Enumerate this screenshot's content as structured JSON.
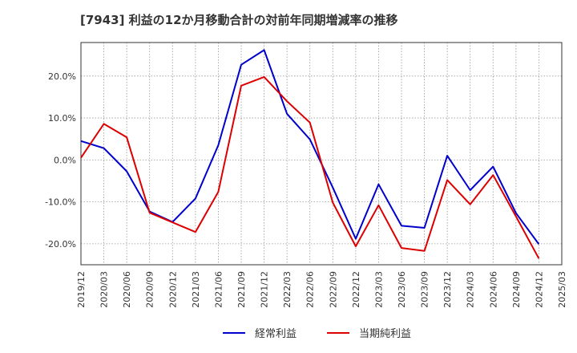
{
  "chart_data": {
    "type": "line",
    "title": "[7943]  利益の12か月移動合計の対前年同期増減率の推移",
    "xlabel": "",
    "ylabel": "",
    "ylim": [
      -25,
      28
    ],
    "yticks": [
      20,
      10,
      0,
      -10,
      -20
    ],
    "ytick_labels": [
      "20.0%",
      "10.0%",
      "0.0%",
      "-10.0%",
      "-20.0%"
    ],
    "categories": [
      "2019/12",
      "2020/03",
      "2020/06",
      "2020/09",
      "2020/12",
      "2021/03",
      "2021/06",
      "2021/09",
      "2021/12",
      "2022/03",
      "2022/06",
      "2022/09",
      "2022/12",
      "2023/03",
      "2023/06",
      "2023/09",
      "2023/12",
      "2024/03",
      "2024/06",
      "2024/09",
      "2024/12",
      "2025/03"
    ],
    "grid": true,
    "legend_position": "bottom",
    "series": [
      {
        "name": "経常利益",
        "color": "#0000cc",
        "values": [
          4.5,
          2.8,
          -2.7,
          -12.3,
          -14.8,
          -9.2,
          3.5,
          22.7,
          26.2,
          11.0,
          4.9,
          -6.6,
          -18.8,
          -5.8,
          -15.7,
          -16.2,
          1.0,
          -7.2,
          -1.6,
          -12.7,
          -20.1,
          null
        ]
      },
      {
        "name": "当期純利益",
        "color": "#dd0000",
        "values": [
          0.5,
          8.6,
          5.4,
          -12.6,
          -14.9,
          -17.2,
          -7.6,
          17.7,
          19.8,
          14.0,
          8.9,
          -10.2,
          -20.6,
          -10.8,
          -21.0,
          -21.7,
          -4.8,
          -10.6,
          -3.6,
          -13.5,
          -23.5,
          null
        ]
      }
    ]
  }
}
